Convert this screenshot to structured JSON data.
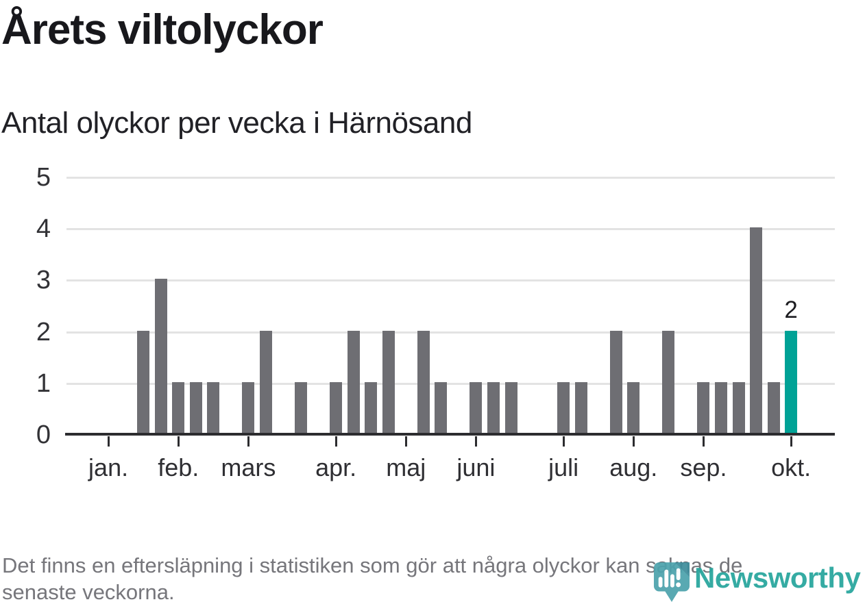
{
  "header": {
    "title": "Årets viltolyckor",
    "subtitle": "Antal olyckor per vecka i Härnösand"
  },
  "footer": {
    "line1": "Det finns en eftersläpning i statistiken som gör att några olyckor kan saknas de",
    "line2": "senaste veckorna."
  },
  "branding": {
    "logo_text": "Newsworthy",
    "logo_text_color": "#2ba79f",
    "pin_color": "#4da3ad",
    "pin_accent_color": "#3f8d9c"
  },
  "chart_data": {
    "type": "bar",
    "title": "Årets viltolyckor",
    "subtitle": "Antal olyckor per vecka i Härnösand",
    "xlabel": "",
    "ylabel": "",
    "x_unit": "vecka",
    "ylim": [
      0,
      5
    ],
    "yticks": [
      0,
      1,
      2,
      3,
      4,
      5
    ],
    "grid": true,
    "bar_color": "#6e6e73",
    "highlight_color": "#00a296",
    "weekly_values": [
      0,
      0,
      0,
      0,
      2,
      3,
      1,
      1,
      1,
      0,
      1,
      2,
      0,
      1,
      0,
      1,
      2,
      1,
      2,
      0,
      2,
      1,
      0,
      1,
      1,
      1,
      0,
      0,
      1,
      1,
      0,
      2,
      1,
      0,
      2,
      0,
      1,
      1,
      1,
      4,
      1,
      2,
      0,
      0
    ],
    "highlight_index": 41,
    "highlight_label": "2",
    "month_ticks": [
      {
        "label": "jan.",
        "index": 2
      },
      {
        "label": "feb.",
        "index": 6
      },
      {
        "label": "mars",
        "index": 10
      },
      {
        "label": "apr.",
        "index": 15
      },
      {
        "label": "maj",
        "index": 19
      },
      {
        "label": "juni",
        "index": 23
      },
      {
        "label": "juli",
        "index": 28
      },
      {
        "label": "aug.",
        "index": 32
      },
      {
        "label": "sep.",
        "index": 36
      },
      {
        "label": "okt.",
        "index": 41
      }
    ]
  }
}
